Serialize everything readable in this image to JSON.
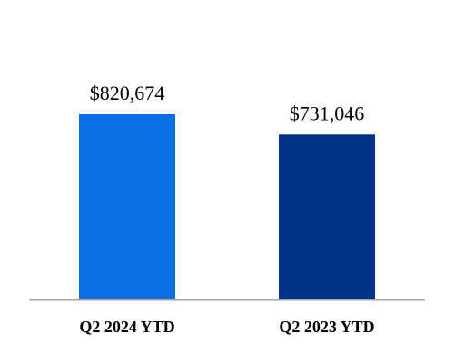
{
  "chart_data": {
    "type": "bar",
    "categories": [
      "Q2 2024 YTD",
      "Q2 2023 YTD"
    ],
    "values": [
      820674,
      731046
    ],
    "value_labels": [
      "$820,674",
      "$731,046"
    ],
    "colors": [
      "#0A6FE0",
      "#033388"
    ],
    "axis_color": "#A6A6A6",
    "ylim": [
      0,
      1000000
    ],
    "grid": false,
    "legend": "none"
  }
}
